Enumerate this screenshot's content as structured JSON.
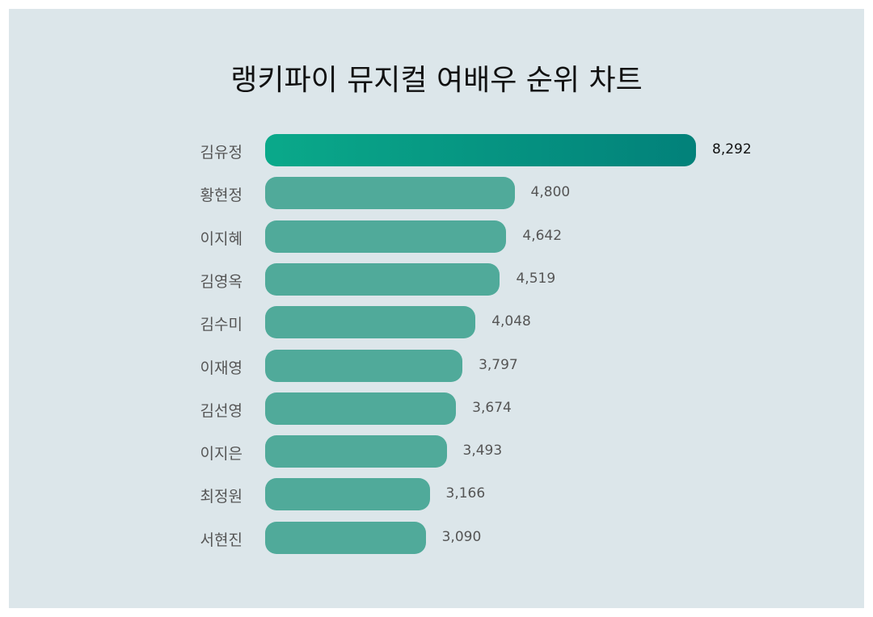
{
  "chart_data": {
    "type": "bar",
    "orientation": "horizontal",
    "title": "랭키파이 뮤지컬 여배우 순위 차트",
    "categories": [
      "김유정",
      "황현정",
      "이지혜",
      "김영옥",
      "김수미",
      "이재영",
      "김선영",
      "이지은",
      "최정원",
      "서현진"
    ],
    "values": [
      8292,
      4800,
      4642,
      4519,
      4048,
      3797,
      3674,
      3493,
      3166,
      3090
    ],
    "value_labels": [
      "8,292",
      "4,800",
      "4,642",
      "4,519",
      "4,048",
      "3,797",
      "3,674",
      "3,493",
      "3,166",
      "3,090"
    ],
    "xlabel": "",
    "ylabel": "",
    "grid": false,
    "colors": {
      "top": "#02817a",
      "top_start": "#0aa98a",
      "bar": "#50aa9a",
      "background": "#dce6ea"
    }
  }
}
